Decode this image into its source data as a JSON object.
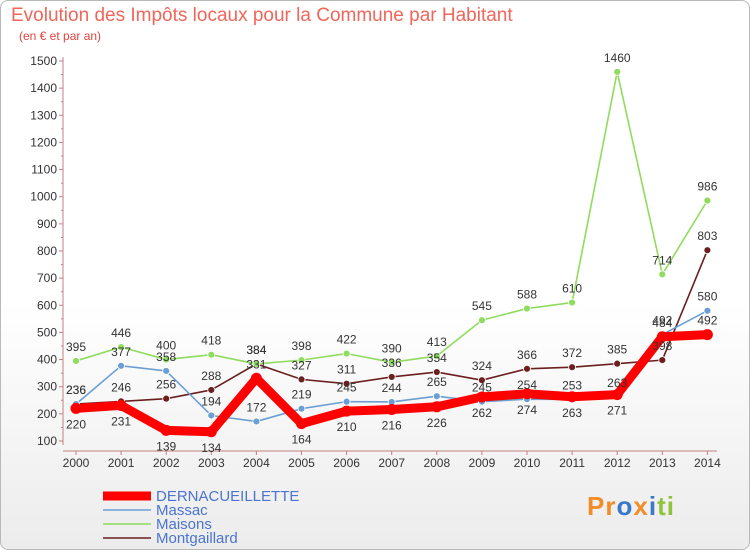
{
  "header": {
    "title": "Evolution des Impôts locaux pour la Commune par Habitant",
    "subtitle": "(en € et par an)"
  },
  "logo": {
    "parts": [
      "Pr",
      "o",
      "x",
      "i",
      "ti"
    ],
    "colors": [
      "#f28c28",
      "#3a78c9",
      "#f28c28",
      "#3a78c9",
      "#8fc43a"
    ]
  },
  "chart_data": {
    "type": "line",
    "x": [
      2000,
      2001,
      2002,
      2003,
      2004,
      2005,
      2006,
      2007,
      2008,
      2009,
      2010,
      2011,
      2012,
      2013,
      2014
    ],
    "ylim": [
      100,
      1500
    ],
    "yticks": [
      100,
      200,
      300,
      400,
      500,
      600,
      700,
      800,
      900,
      1000,
      1100,
      1200,
      1300,
      1400,
      1500
    ],
    "grid": false,
    "legend_position": "bottom-left",
    "series": [
      {
        "name": "DERNACUEILLETTE",
        "color": "#ff0000",
        "values": [
          220,
          231,
          139,
          134,
          331,
          164,
          210,
          216,
          226,
          262,
          274,
          263,
          271,
          484,
          492
        ]
      },
      {
        "name": "Massac",
        "color": "#6b9fd4",
        "values": [
          236,
          377,
          358,
          194,
          172,
          219,
          245,
          244,
          265,
          245,
          254,
          253,
          263,
          492,
          580
        ]
      },
      {
        "name": "Maisons",
        "color": "#8fdc5e",
        "values": [
          395,
          446,
          400,
          418,
          384,
          398,
          422,
          390,
          413,
          545,
          588,
          610,
          1460,
          714,
          986
        ]
      },
      {
        "name": "Montgaillard",
        "color": "#6b1f1f",
        "values": [
          236,
          246,
          256,
          288,
          384,
          327,
          311,
          336,
          354,
          324,
          366,
          372,
          385,
          398,
          803
        ]
      }
    ]
  }
}
